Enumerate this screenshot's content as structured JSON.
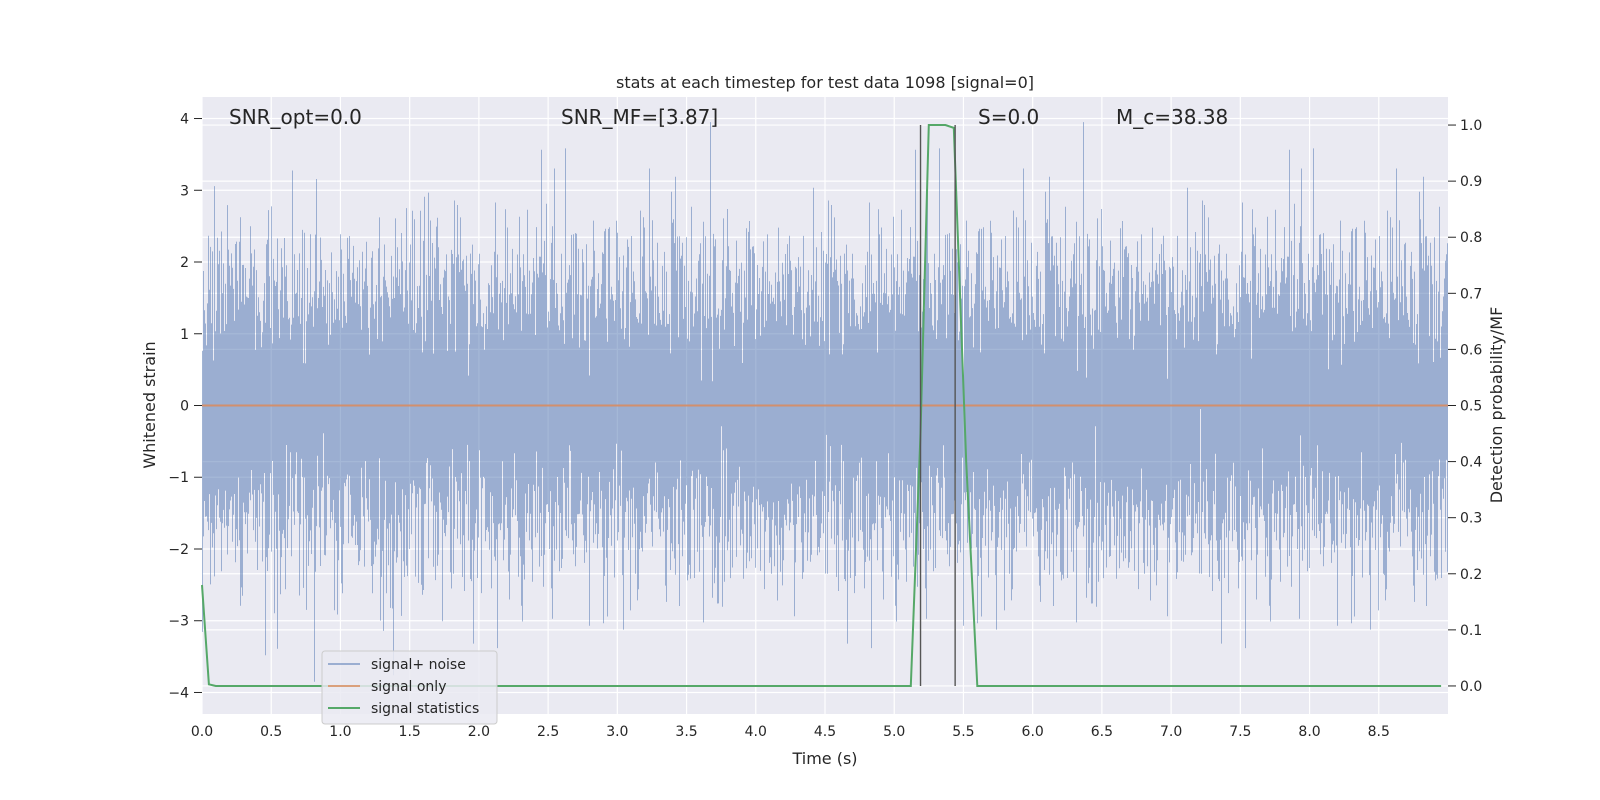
{
  "chart_data": {
    "type": "line",
    "title": "stats at each timestep for test data 1098 [signal=0]",
    "xlabel": "Time (s)",
    "ylabel": "Whitened strain",
    "y2label": "Detection probability/MF",
    "xlim": [
      0,
      9
    ],
    "ylim": [
      -4.3,
      4.3
    ],
    "y2lim": [
      -0.05,
      1.05
    ],
    "x_ticks": [
      "0.0",
      "0.5",
      "1.0",
      "1.5",
      "2.0",
      "2.5",
      "3.0",
      "3.5",
      "4.0",
      "4.5",
      "5.0",
      "5.5",
      "6.0",
      "6.5",
      "7.0",
      "7.5",
      "8.0",
      "8.5"
    ],
    "y_ticks": [
      "4",
      "3",
      "2",
      "1",
      "0",
      "−1",
      "−2",
      "−3",
      "−4"
    ],
    "y2_ticks": [
      "1.0",
      "0.9",
      "0.8",
      "0.7",
      "0.6",
      "0.5",
      "0.4",
      "0.3",
      "0.2",
      "0.1",
      "0.0"
    ],
    "grid": true,
    "legend_position": "lower-left",
    "annotations": {
      "snr_opt": "SNR_opt=0.0",
      "snr_mf": "SNR_MF=[3.87]",
      "s": "S=0.0",
      "mc": "M_c=38.38"
    },
    "vertical_lines_x": [
      5.19,
      5.44
    ],
    "series": [
      {
        "name": "signal+ noise",
        "color": "#4c72b0",
        "axis": "left",
        "kind": "noise",
        "sample_rate_hz": 2048,
        "std": 1.0,
        "approx_range": [
          -3.85,
          3.95
        ]
      },
      {
        "name": "signal only",
        "color": "#dd8452",
        "axis": "left",
        "x": [
          0,
          9
        ],
        "y": [
          0,
          0
        ]
      },
      {
        "name": "signal statistics",
        "color": "#55a868",
        "axis": "right",
        "x": [
          0.0,
          0.05,
          0.1,
          5.0,
          5.12,
          5.19,
          5.25,
          5.37,
          5.43,
          5.52,
          5.6,
          8.95
        ],
        "y": [
          0.18,
          0.003,
          0.0,
          0.0,
          0.0,
          0.45,
          1.0,
          1.0,
          0.995,
          0.4,
          0.0,
          0.0
        ]
      }
    ]
  }
}
